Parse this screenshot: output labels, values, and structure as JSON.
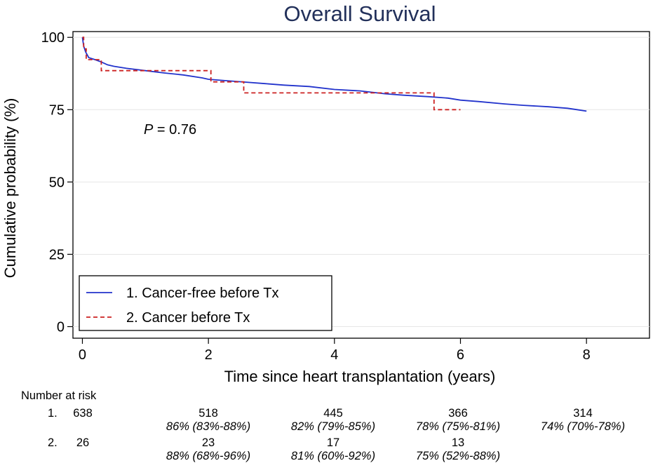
{
  "chart_data": {
    "type": "line",
    "title": "Overall Survival",
    "xlabel": "Time since heart transplantation (years)",
    "ylabel": "Cumulative probability (%)",
    "xlim": [
      -0.15,
      9.0
    ],
    "ylim": [
      -4,
      102
    ],
    "xticks": [
      0,
      2,
      4,
      6,
      8
    ],
    "yticks": [
      0,
      25,
      50,
      75,
      100
    ],
    "grid": true,
    "legend_position": "bottom-left",
    "annotation": {
      "italic_label": "P",
      "text": " = 0.76"
    },
    "series": [
      {
        "name": "1. Cancer-free before Tx",
        "color": "#2233cc",
        "style": "solid",
        "points": [
          [
            0,
            100
          ],
          [
            0.02,
            97
          ],
          [
            0.05,
            95
          ],
          [
            0.1,
            93
          ],
          [
            0.2,
            92.3
          ],
          [
            0.3,
            91.5
          ],
          [
            0.4,
            90.5
          ],
          [
            0.5,
            90
          ],
          [
            0.7,
            89.3
          ],
          [
            1.0,
            88.5
          ],
          [
            1.3,
            87.7
          ],
          [
            1.6,
            87
          ],
          [
            1.9,
            86
          ],
          [
            2.0,
            85.5
          ],
          [
            2.3,
            85
          ],
          [
            2.6,
            84.5
          ],
          [
            2.9,
            84
          ],
          [
            3.2,
            83.5
          ],
          [
            3.6,
            83
          ],
          [
            4.0,
            82
          ],
          [
            4.4,
            81.5
          ],
          [
            4.8,
            80.5
          ],
          [
            5.1,
            80
          ],
          [
            5.5,
            79.5
          ],
          [
            5.8,
            79
          ],
          [
            6.0,
            78.3
          ],
          [
            6.3,
            77.8
          ],
          [
            6.7,
            77
          ],
          [
            7.0,
            76.5
          ],
          [
            7.4,
            76
          ],
          [
            7.7,
            75.5
          ],
          [
            7.85,
            75
          ],
          [
            8.0,
            74.5
          ]
        ]
      },
      {
        "name": "2. Cancer before Tx",
        "color": "#cc2222",
        "style": "dashed",
        "steps": [
          [
            0,
            100
          ],
          [
            0.02,
            96
          ],
          [
            0.06,
            92.3
          ],
          [
            0.3,
            88.5
          ],
          [
            2.04,
            84.6
          ],
          [
            2.56,
            80.8
          ],
          [
            5.58,
            75
          ],
          [
            6.0,
            75
          ]
        ]
      }
    ]
  },
  "risk_table": {
    "title": "Number at risk",
    "groups": [
      {
        "label": "1.",
        "counts": [
          "638",
          "518",
          "445",
          "366",
          "314"
        ],
        "estimates": [
          "86% (83%-88%)",
          "82% (79%-85%)",
          "78% (75%-81%)",
          "74% (70%-78%)"
        ]
      },
      {
        "label": "2.",
        "counts": [
          "26",
          "23",
          "17",
          "13"
        ],
        "estimates": [
          "88% (68%-96%)",
          "81% (60%-92%)",
          "75% (52%-88%)"
        ]
      }
    ]
  }
}
